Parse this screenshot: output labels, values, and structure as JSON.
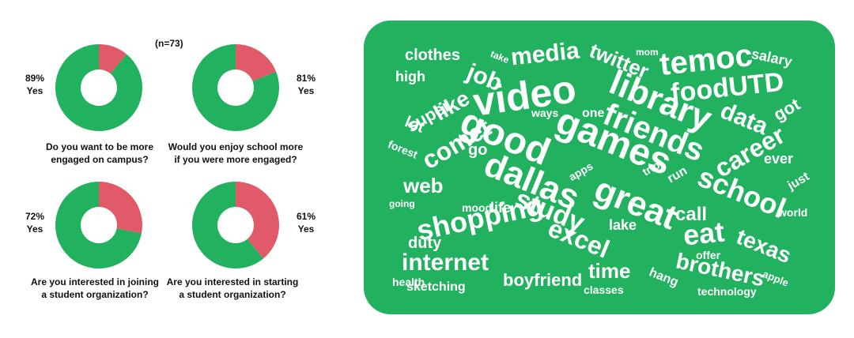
{
  "sample_note": "(n=73)",
  "colors": {
    "yes": "#21b15f",
    "no": "#e05a6a",
    "cloud_bg": "#21b15f",
    "cloud_text": "#ffffff"
  },
  "chart_data": [
    {
      "type": "pie",
      "title": "",
      "values": [
        {
          "label": "Yes",
          "value": 89
        },
        {
          "label": "No",
          "value": 11
        }
      ],
      "yes_label": "89%",
      "yes_word": "Yes",
      "question": [
        "Do you want to be more",
        "engaged on campus?"
      ]
    },
    {
      "type": "pie",
      "title": "",
      "values": [
        {
          "label": "Yes",
          "value": 81
        },
        {
          "label": "No",
          "value": 19
        }
      ],
      "yes_label": "81%",
      "yes_word": "Yes",
      "question": [
        "Would you enjoy school more",
        "if you were more engaged?"
      ]
    },
    {
      "type": "pie",
      "title": "",
      "values": [
        {
          "label": "Yes",
          "value": 72
        },
        {
          "label": "No",
          "value": 28
        }
      ],
      "yes_label": "72%",
      "yes_word": "Yes",
      "question": [
        "Are you interested in joining",
        "a student organization?"
      ]
    },
    {
      "type": "pie",
      "title": "",
      "values": [
        {
          "label": "Yes",
          "value": 61
        },
        {
          "label": "No",
          "value": 39
        }
      ],
      "yes_label": "61%",
      "yes_word": "Yes",
      "question": [
        "Are you interested in starting",
        "a student organization?"
      ]
    }
  ],
  "word_cloud": [
    "video",
    "library",
    "good",
    "games",
    "friends",
    "dallas",
    "great",
    "school",
    "study",
    "shopping",
    "temoc",
    "foodUTD",
    "job",
    "media",
    "twitter",
    "clothes",
    "internet",
    "excel",
    "eat",
    "texas",
    "comet",
    "career",
    "data",
    "like",
    "super",
    "time",
    "brothers",
    "boyfriend",
    "duty",
    "web",
    "call",
    "lake",
    "life",
    "mood",
    "sketching",
    "health",
    "classes",
    "technology",
    "apple",
    "world",
    "offer",
    "hang",
    "run",
    "trip",
    "apps",
    "forest",
    "ways",
    "one",
    "got",
    "salary",
    "ever",
    "just",
    "high",
    "lot",
    "go",
    "mom",
    "take",
    "going"
  ]
}
